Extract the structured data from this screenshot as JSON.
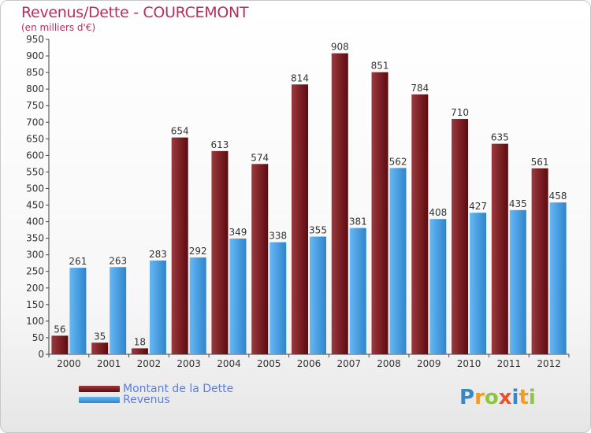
{
  "title": "Revenus/Dette - COURCEMONT",
  "subtitle": "(en milliers d'€)",
  "colors": {
    "dette": "#6e0f14",
    "dette_light": "#9a3a3e",
    "revenus": "#2d7fc8",
    "revenus_light": "#62b4f2",
    "title": "#b5305a"
  },
  "legend": {
    "dette_label": "Montant de la Dette",
    "revenus_label": "Revenus"
  },
  "logo": {
    "letters": [
      "P",
      "r",
      "o",
      "x",
      "i",
      "t",
      "i"
    ],
    "colors": [
      "#3a87c8",
      "#f39a1f",
      "#8cc63e",
      "#e8542f",
      "#3a87c8",
      "#f39a1f",
      "#8cc63e"
    ]
  },
  "chart_data": {
    "type": "bar",
    "title": "Revenus/Dette - COURCEMONT",
    "ylabel": "(en milliers d'€)",
    "xlabel": "",
    "ylim": [
      0,
      950
    ],
    "yticks": [
      0,
      50,
      100,
      150,
      200,
      250,
      300,
      350,
      400,
      450,
      500,
      550,
      600,
      650,
      700,
      750,
      800,
      850,
      900,
      950
    ],
    "categories": [
      "2000",
      "2001",
      "2002",
      "2003",
      "2004",
      "2005",
      "2006",
      "2007",
      "2008",
      "2009",
      "2010",
      "2011",
      "2012"
    ],
    "series": [
      {
        "name": "Montant de la Dette",
        "values": [
          56,
          35,
          18,
          654,
          613,
          574,
          814,
          908,
          851,
          784,
          710,
          635,
          561
        ]
      },
      {
        "name": "Revenus",
        "values": [
          261,
          263,
          283,
          292,
          349,
          338,
          355,
          381,
          562,
          408,
          427,
          435,
          458
        ]
      }
    ],
    "legend_position": "bottom-left",
    "grid": false
  }
}
